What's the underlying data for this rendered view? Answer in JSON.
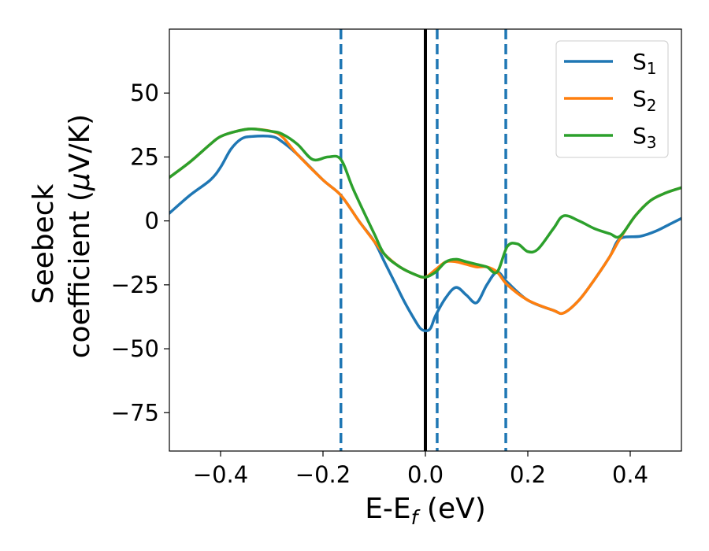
{
  "chart_data": {
    "type": "line",
    "xlabel": "E-E",
    "xlabel_sub": "f",
    "xlabel_unit": " (eV)",
    "ylabel_line1": "Seebeck",
    "ylabel_line2": "coefficient  (",
    "ylabel_mu": "μ",
    "ylabel_unit_end": "V/K)",
    "xlim": [
      -0.5,
      0.5
    ],
    "ylim": [
      -90,
      75
    ],
    "xticks": [
      -0.4,
      -0.2,
      0.0,
      0.2,
      0.4
    ],
    "xtick_labels": [
      "−0.4",
      "−0.2",
      "0.0",
      "0.2",
      "0.4"
    ],
    "yticks": [
      -75,
      -50,
      -25,
      0,
      25,
      50
    ],
    "ytick_labels": [
      "−75",
      "−50",
      "−25",
      "0",
      "25",
      "50"
    ],
    "grid": false,
    "legend_position": "top-right",
    "vertical_lines": [
      {
        "x": -0.165,
        "style": "dashed",
        "color": "#1f77b4"
      },
      {
        "x": 0.0,
        "style": "solid",
        "color": "#000000"
      },
      {
        "x": 0.023,
        "style": "dashed",
        "color": "#1f77b4"
      },
      {
        "x": 0.157,
        "style": "dashed",
        "color": "#1f77b4"
      }
    ],
    "series": [
      {
        "name": "S",
        "sub": "1",
        "color": "#1f77b4",
        "x": [
          -0.5,
          -0.46,
          -0.42,
          -0.4,
          -0.38,
          -0.36,
          -0.34,
          -0.3,
          -0.28,
          -0.25,
          -0.2,
          -0.165,
          -0.13,
          -0.1,
          -0.08,
          -0.06,
          -0.04,
          -0.02,
          -0.01,
          0.0,
          0.01,
          0.02,
          0.04,
          0.06,
          0.08,
          0.1,
          0.12,
          0.14,
          0.16,
          0.2,
          0.25,
          0.27,
          0.3,
          0.33,
          0.36,
          0.38,
          0.42,
          0.45,
          0.48,
          0.5
        ],
        "y": [
          3,
          10,
          16,
          21,
          28,
          32,
          33,
          33,
          31,
          26,
          16,
          10,
          0,
          -8,
          -16,
          -24,
          -32,
          -39,
          -42,
          -43,
          -42,
          -37,
          -30,
          -26,
          -29,
          -32,
          -25,
          -20,
          -24,
          -31,
          -35,
          -36,
          -31,
          -23,
          -14,
          -7,
          -6,
          -4,
          -1,
          1
        ]
      },
      {
        "name": "S",
        "sub": "2",
        "color": "#ff7f0e",
        "x": [
          -0.5,
          -0.46,
          -0.42,
          -0.4,
          -0.37,
          -0.34,
          -0.3,
          -0.28,
          -0.25,
          -0.2,
          -0.165,
          -0.13,
          -0.1,
          -0.08,
          -0.05,
          -0.02,
          0.0,
          0.02,
          0.04,
          0.06,
          0.08,
          0.1,
          0.12,
          0.14,
          0.16,
          0.2,
          0.25,
          0.27,
          0.3,
          0.33,
          0.36,
          0.38,
          0.41,
          0.44,
          0.47,
          0.5
        ],
        "y": [
          17,
          23,
          30,
          33,
          35,
          36,
          35,
          33,
          26,
          16,
          10,
          0,
          -8,
          -13,
          -18,
          -21,
          -22,
          -19,
          -16,
          -16,
          -17,
          -18,
          -18,
          -20,
          -25,
          -31,
          -35,
          -36,
          -31,
          -23,
          -14,
          -7,
          2,
          8,
          11,
          13
        ]
      },
      {
        "name": "S",
        "sub": "3",
        "color": "#2ca02c",
        "x": [
          -0.5,
          -0.46,
          -0.42,
          -0.4,
          -0.37,
          -0.34,
          -0.3,
          -0.28,
          -0.25,
          -0.22,
          -0.19,
          -0.165,
          -0.14,
          -0.1,
          -0.08,
          -0.05,
          -0.02,
          0.0,
          0.02,
          0.04,
          0.06,
          0.08,
          0.1,
          0.12,
          0.14,
          0.16,
          0.18,
          0.2,
          0.22,
          0.25,
          0.27,
          0.3,
          0.33,
          0.36,
          0.38,
          0.41,
          0.44,
          0.47,
          0.5
        ],
        "y": [
          17,
          23,
          30,
          33,
          35,
          36,
          35,
          34,
          30,
          24,
          25,
          24,
          12,
          -5,
          -13,
          -18,
          -21,
          -22,
          -20,
          -16,
          -15,
          -16,
          -17,
          -18,
          -20,
          -10,
          -9,
          -12,
          -11,
          -3,
          2,
          0,
          -3,
          -5,
          -6,
          2,
          8,
          11,
          13
        ]
      }
    ]
  }
}
